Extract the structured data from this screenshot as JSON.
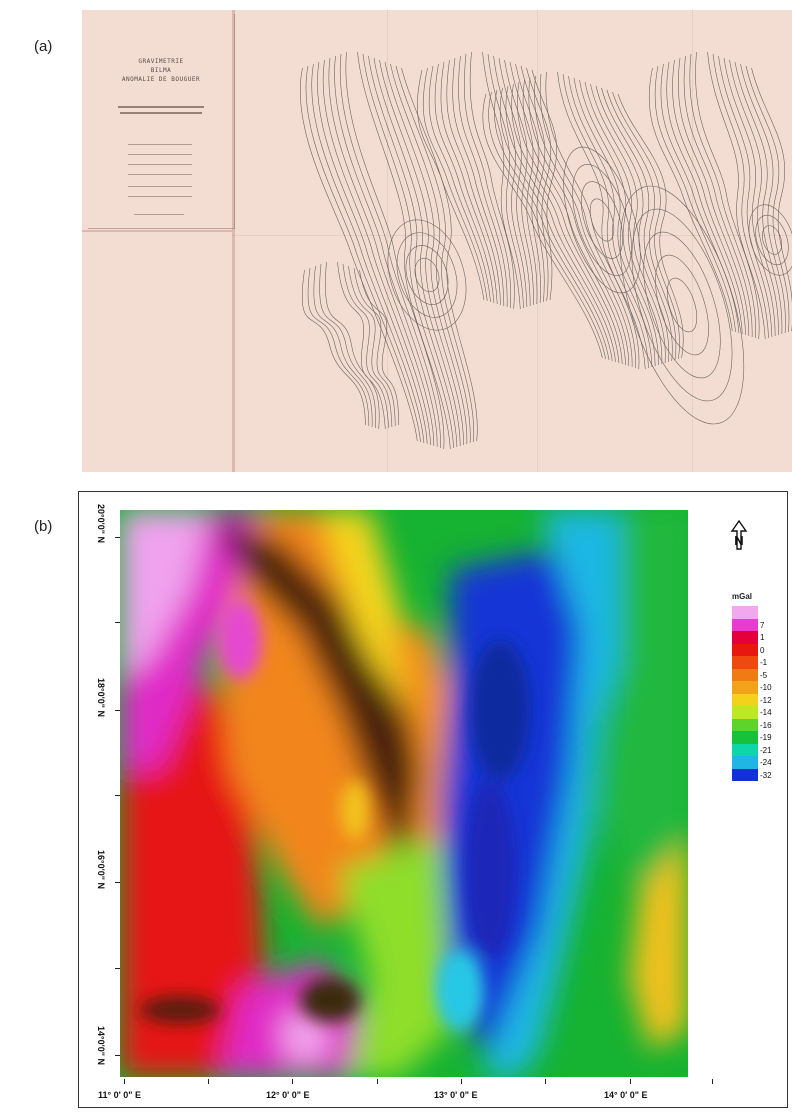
{
  "panel_a": {
    "label": "(a)",
    "title_lines": [
      "GRAVIMETRIE",
      "BILMA",
      "ANOMALIE DE BOUGUER"
    ]
  },
  "panel_b": {
    "label": "(b)",
    "legend": {
      "unit": "mGal",
      "entries": [
        {
          "value": "",
          "color": "#f2a7ef"
        },
        {
          "value": "7",
          "color": "#e83bd2"
        },
        {
          "value": "1",
          "color": "#e4003a"
        },
        {
          "value": "0",
          "color": "#e81810"
        },
        {
          "value": "-1",
          "color": "#ee4a10"
        },
        {
          "value": "-5",
          "color": "#f07a14"
        },
        {
          "value": "-10",
          "color": "#f1a31a"
        },
        {
          "value": "-12",
          "color": "#f4d21c"
        },
        {
          "value": "-14",
          "color": "#bde824"
        },
        {
          "value": "-16",
          "color": "#5ed42a"
        },
        {
          "value": "-19",
          "color": "#16c23a"
        },
        {
          "value": "-21",
          "color": "#0fd6a8"
        },
        {
          "value": "-24",
          "color": "#1fb6e6"
        },
        {
          "value": "-32",
          "color": "#1030d8"
        }
      ]
    },
    "lat_labels": [
      "20°0'0\" N",
      "18°0'0\" N",
      "16°0'0\" N",
      "14°0'0\" N"
    ],
    "lon_labels": [
      "11° 0' 0\" E",
      "12° 0' 0\" E",
      "13° 0' 0\" E",
      "14° 0' 0\" E"
    ],
    "north_symbol": "north-arrow-icon"
  }
}
